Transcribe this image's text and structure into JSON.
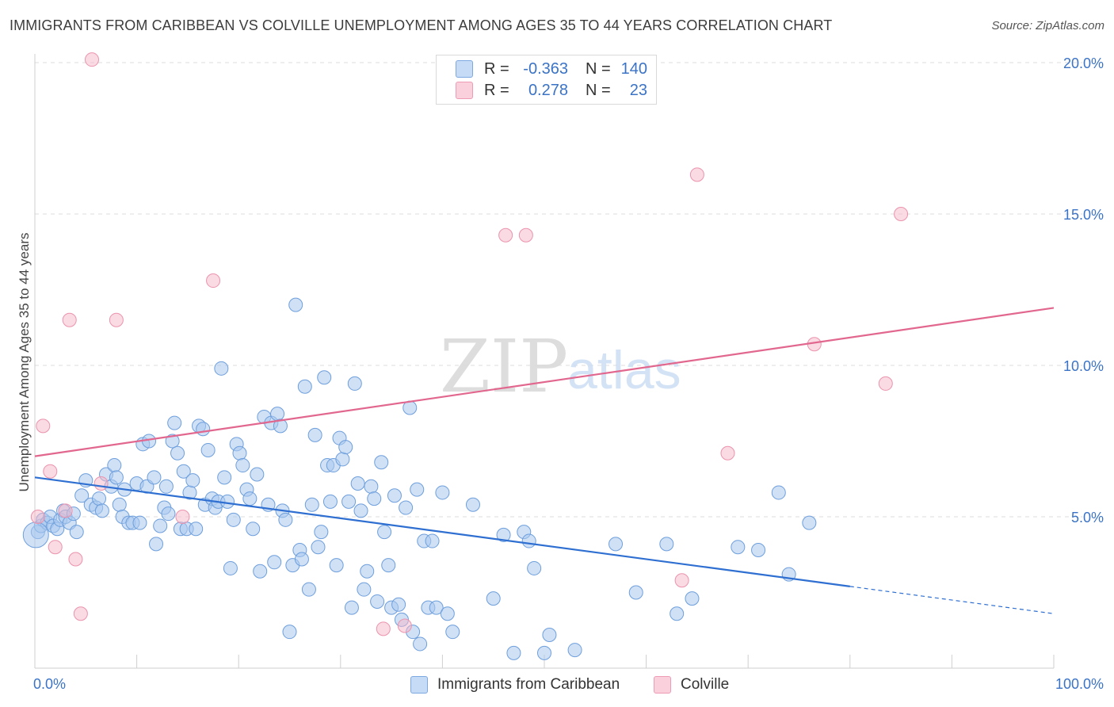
{
  "title": "IMMIGRANTS FROM CARIBBEAN VS COLVILLE UNEMPLOYMENT AMONG AGES 35 TO 44 YEARS CORRELATION CHART",
  "source": "Source: ZipAtlas.com",
  "watermark": {
    "zip": "ZIP",
    "atlas": "atlas"
  },
  "legend": {
    "rows": [
      {
        "r_label": "R =",
        "r_value": "-0.363",
        "n_label": "N =",
        "n_value": "140",
        "color": "#a9c8ef"
      },
      {
        "r_label": "R =",
        "r_value": "0.278",
        "n_label": "N =",
        "n_value": "23",
        "color": "#f6b8ca"
      }
    ]
  },
  "bottom_legend": {
    "series1": "Immigrants from Caribbean",
    "series2": "Colville"
  },
  "colors": {
    "blue_fill": "#a9c8ef",
    "blue_stroke": "#6e9fdc",
    "blue_line": "#2e6fd1",
    "pink_fill": "#f6b8ca",
    "pink_stroke": "#eb93ad",
    "pink_line": "#e2678f",
    "tick_label": "#3b73c6",
    "grid": "#dcdcdc"
  },
  "chart_data": {
    "type": "scatter",
    "title": "IMMIGRANTS FROM CARIBBEAN VS COLVILLE UNEMPLOYMENT AMONG AGES 35 TO 44 YEARS CORRELATION CHART",
    "xlabel": "",
    "ylabel": "Unemployment Among Ages 35 to 44 years",
    "xlim": [
      0,
      100
    ],
    "ylim": [
      0,
      20.5
    ],
    "x_tick_labels": [
      "0.0%",
      "100.0%"
    ],
    "y_ticks": [
      5,
      10,
      15,
      20
    ],
    "y_tick_labels": [
      "5.0%",
      "10.0%",
      "15.0%",
      "20.0%"
    ],
    "grid": true,
    "series": [
      {
        "name": "Immigrants from Caribbean",
        "points": [
          [
            0.3,
            4.5
          ],
          [
            0.6,
            4.7
          ],
          [
            0.8,
            4.9
          ],
          [
            1.2,
            4.8
          ],
          [
            1.5,
            5.0
          ],
          [
            1.8,
            4.7
          ],
          [
            2.2,
            4.6
          ],
          [
            2.5,
            4.9
          ],
          [
            2.8,
            5.2
          ],
          [
            3.0,
            5.0
          ],
          [
            3.4,
            4.8
          ],
          [
            3.8,
            5.1
          ],
          [
            4.1,
            4.5
          ],
          [
            4.6,
            5.7
          ],
          [
            5.0,
            6.2
          ],
          [
            5.5,
            5.4
          ],
          [
            6.0,
            5.3
          ],
          [
            6.3,
            5.6
          ],
          [
            6.6,
            5.2
          ],
          [
            7.0,
            6.4
          ],
          [
            7.5,
            6.0
          ],
          [
            7.8,
            6.7
          ],
          [
            8.0,
            6.3
          ],
          [
            8.3,
            5.4
          ],
          [
            8.6,
            5.0
          ],
          [
            8.8,
            5.9
          ],
          [
            9.2,
            4.8
          ],
          [
            9.6,
            4.8
          ],
          [
            10.0,
            6.1
          ],
          [
            10.3,
            4.8
          ],
          [
            10.6,
            7.4
          ],
          [
            11.0,
            6.0
          ],
          [
            11.2,
            7.5
          ],
          [
            11.7,
            6.3
          ],
          [
            11.9,
            4.1
          ],
          [
            12.3,
            4.7
          ],
          [
            12.7,
            5.3
          ],
          [
            12.9,
            6.0
          ],
          [
            13.1,
            5.1
          ],
          [
            13.5,
            7.5
          ],
          [
            13.7,
            8.1
          ],
          [
            14.0,
            7.1
          ],
          [
            14.3,
            4.6
          ],
          [
            14.6,
            6.5
          ],
          [
            14.9,
            4.6
          ],
          [
            15.2,
            5.8
          ],
          [
            15.5,
            6.2
          ],
          [
            15.8,
            4.6
          ],
          [
            16.1,
            8.0
          ],
          [
            16.5,
            7.9
          ],
          [
            16.7,
            5.4
          ],
          [
            17.0,
            7.2
          ],
          [
            17.4,
            5.6
          ],
          [
            17.7,
            5.3
          ],
          [
            18.0,
            5.5
          ],
          [
            18.3,
            9.9
          ],
          [
            18.6,
            6.3
          ],
          [
            18.9,
            5.5
          ],
          [
            19.2,
            3.3
          ],
          [
            19.5,
            4.9
          ],
          [
            19.8,
            7.4
          ],
          [
            20.1,
            7.1
          ],
          [
            20.4,
            6.7
          ],
          [
            20.8,
            5.9
          ],
          [
            21.1,
            5.6
          ],
          [
            21.4,
            4.6
          ],
          [
            21.8,
            6.4
          ],
          [
            22.1,
            3.2
          ],
          [
            22.5,
            8.3
          ],
          [
            22.9,
            5.4
          ],
          [
            23.2,
            8.1
          ],
          [
            23.5,
            3.5
          ],
          [
            23.8,
            8.4
          ],
          [
            24.1,
            8.0
          ],
          [
            24.3,
            5.2
          ],
          [
            24.6,
            4.9
          ],
          [
            25.0,
            1.2
          ],
          [
            25.3,
            3.4
          ],
          [
            25.6,
            12.0
          ],
          [
            26.0,
            3.9
          ],
          [
            26.2,
            3.6
          ],
          [
            26.5,
            9.3
          ],
          [
            26.9,
            2.6
          ],
          [
            27.2,
            5.4
          ],
          [
            27.5,
            7.7
          ],
          [
            27.8,
            4.0
          ],
          [
            28.1,
            4.5
          ],
          [
            28.4,
            9.6
          ],
          [
            28.7,
            6.7
          ],
          [
            29.0,
            5.5
          ],
          [
            29.3,
            6.7
          ],
          [
            29.6,
            3.4
          ],
          [
            29.9,
            7.6
          ],
          [
            30.2,
            6.9
          ],
          [
            30.5,
            7.3
          ],
          [
            30.8,
            5.5
          ],
          [
            31.1,
            2.0
          ],
          [
            31.4,
            9.4
          ],
          [
            31.7,
            6.1
          ],
          [
            32.0,
            5.2
          ],
          [
            32.3,
            2.6
          ],
          [
            32.6,
            3.2
          ],
          [
            33.0,
            6.0
          ],
          [
            33.3,
            5.6
          ],
          [
            33.6,
            2.2
          ],
          [
            34.0,
            6.8
          ],
          [
            34.3,
            4.5
          ],
          [
            34.7,
            3.4
          ],
          [
            35.0,
            2.0
          ],
          [
            35.3,
            5.7
          ],
          [
            35.7,
            2.1
          ],
          [
            36.0,
            1.6
          ],
          [
            36.4,
            5.3
          ],
          [
            36.8,
            8.6
          ],
          [
            37.1,
            1.2
          ],
          [
            37.5,
            5.9
          ],
          [
            37.8,
            0.8
          ],
          [
            38.2,
            4.2
          ],
          [
            38.6,
            2.0
          ],
          [
            39.0,
            4.2
          ],
          [
            39.4,
            2.0
          ],
          [
            40.0,
            5.8
          ],
          [
            40.5,
            1.8
          ],
          [
            41.0,
            1.2
          ],
          [
            43.0,
            5.4
          ],
          [
            45.0,
            2.3
          ],
          [
            46.0,
            4.4
          ],
          [
            47.0,
            0.5
          ],
          [
            48.0,
            4.5
          ],
          [
            48.5,
            4.2
          ],
          [
            49.0,
            3.3
          ],
          [
            50.0,
            0.5
          ],
          [
            50.5,
            1.1
          ],
          [
            53.0,
            0.6
          ],
          [
            57.0,
            4.1
          ],
          [
            59.0,
            2.5
          ],
          [
            62.0,
            4.1
          ],
          [
            63.0,
            1.8
          ],
          [
            64.5,
            2.3
          ],
          [
            69.0,
            4.0
          ],
          [
            71.0,
            3.9
          ],
          [
            73.0,
            5.8
          ],
          [
            74.0,
            3.1
          ],
          [
            76.0,
            4.8
          ],
          [
            0.1,
            4.4
          ]
        ]
      },
      {
        "name": "Colville",
        "points": [
          [
            0.3,
            5.0
          ],
          [
            0.8,
            8.0
          ],
          [
            1.5,
            6.5
          ],
          [
            2.0,
            4.0
          ],
          [
            3.0,
            5.2
          ],
          [
            3.4,
            11.5
          ],
          [
            4.0,
            3.6
          ],
          [
            4.5,
            1.8
          ],
          [
            5.6,
            20.1
          ],
          [
            6.5,
            6.1
          ],
          [
            8.0,
            11.5
          ],
          [
            14.5,
            5.0
          ],
          [
            17.5,
            12.8
          ],
          [
            34.2,
            1.3
          ],
          [
            36.3,
            1.4
          ],
          [
            46.2,
            14.3
          ],
          [
            48.2,
            14.3
          ],
          [
            63.5,
            2.9
          ],
          [
            65.0,
            16.3
          ],
          [
            68.0,
            7.1
          ],
          [
            76.5,
            10.7
          ],
          [
            83.5,
            9.4
          ],
          [
            85.0,
            15.0
          ]
        ]
      }
    ],
    "trendlines": [
      {
        "series": "Immigrants from Caribbean",
        "x": [
          0,
          80
        ],
        "y": [
          6.3,
          2.7
        ],
        "extended_to": [
          100,
          1.8
        ],
        "style": "solid then dashed"
      },
      {
        "series": "Colville",
        "x": [
          0,
          100
        ],
        "y": [
          7.0,
          11.9
        ],
        "style": "solid"
      }
    ]
  }
}
